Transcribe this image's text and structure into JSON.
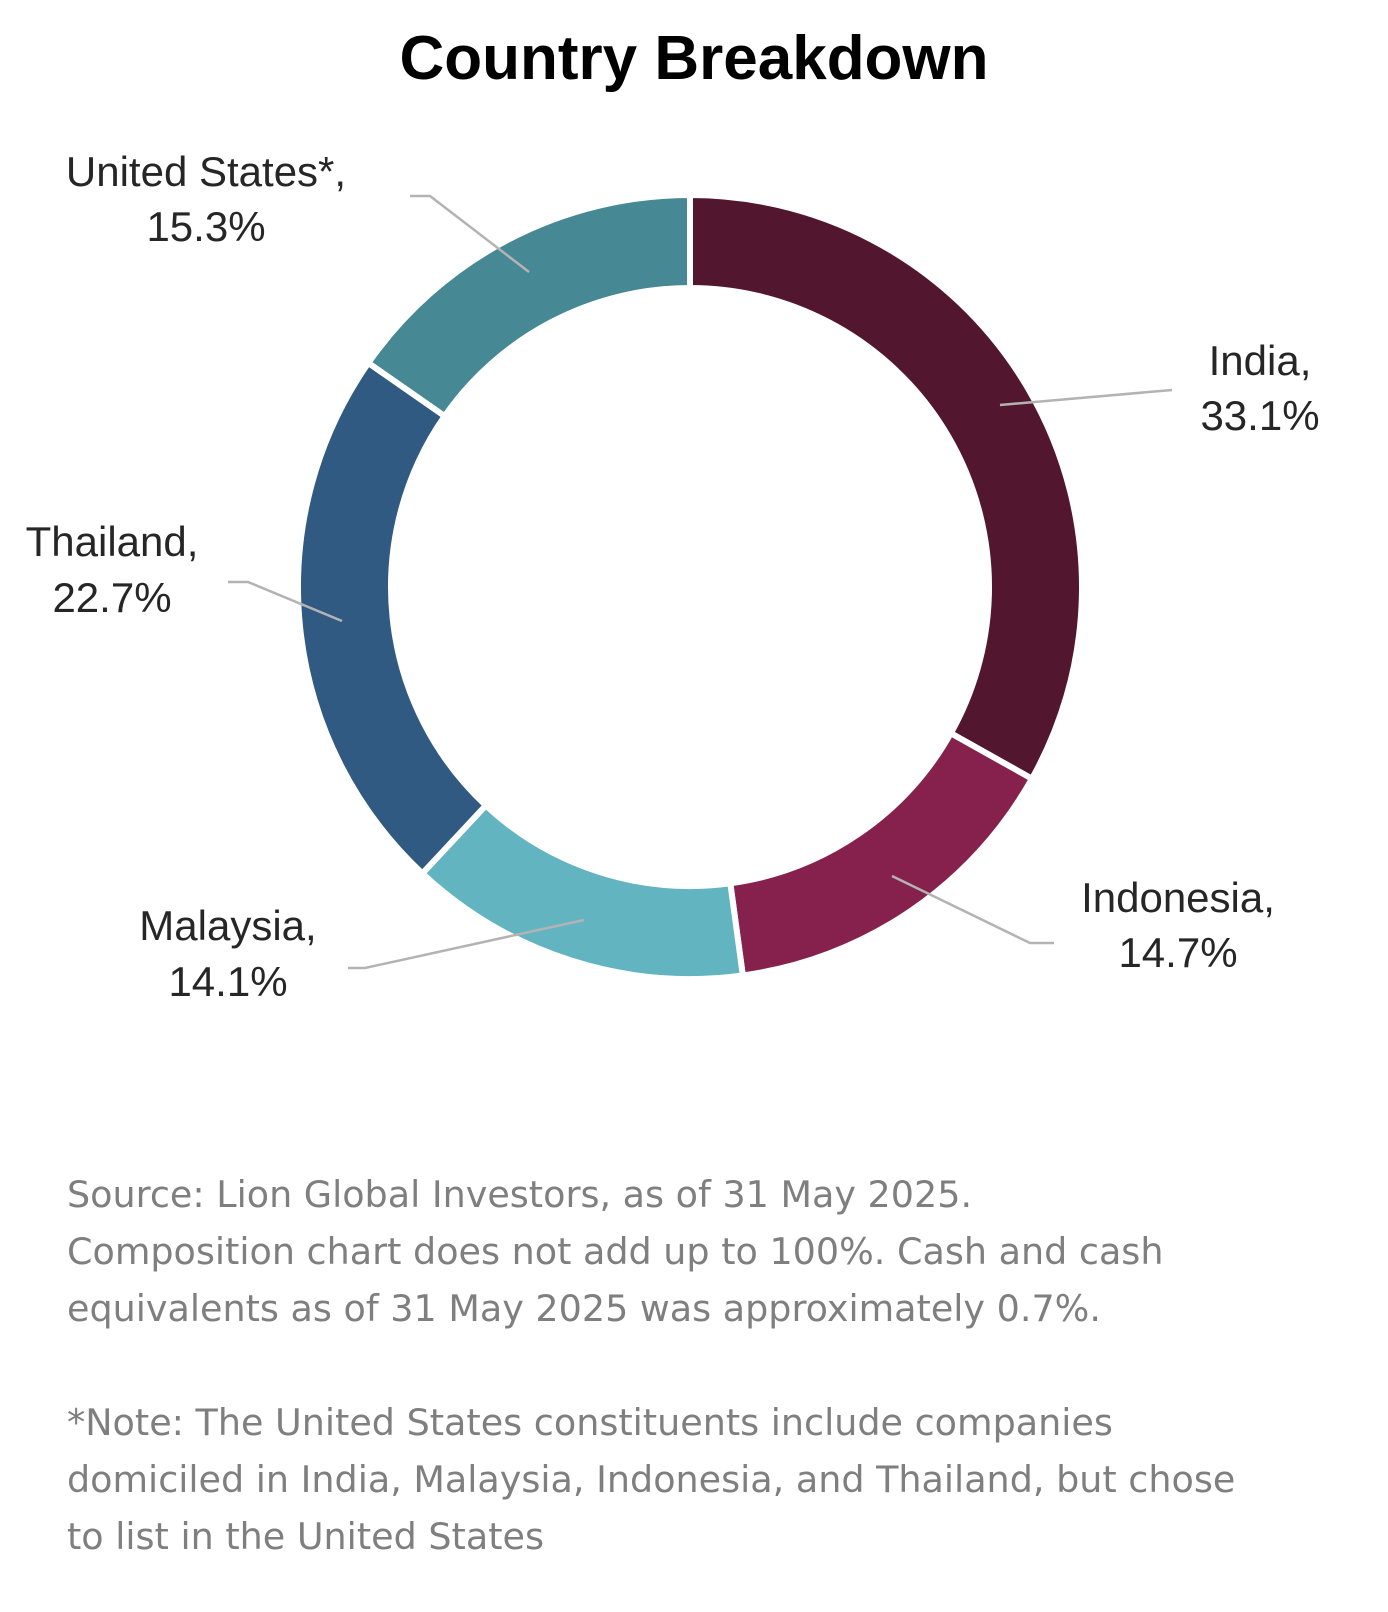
{
  "chart_data": {
    "type": "pie",
    "style": "donut",
    "title": "Country Breakdown",
    "slices": [
      {
        "label": "India,",
        "value_label": "33.1%",
        "value": 33.1,
        "color": "#52172E"
      },
      {
        "label": "Indonesia,",
        "value_label": "14.7%",
        "value": 14.7,
        "color": "#86214D"
      },
      {
        "label": "Malaysia,",
        "value_label": "14.1%",
        "value": 14.1,
        "color": "#63B4C1"
      },
      {
        "label": "Thailand,",
        "value_label": "22.7%",
        "value": 22.7,
        "color": "#305A81"
      },
      {
        "label": "United States*,",
        "value_label": "15.3%",
        "value": 15.3,
        "color": "#468893"
      }
    ],
    "legend": "none",
    "leader_line_color": "#B3B3B3"
  },
  "notes": {
    "source_lines": [
      "Source: Lion Global Investors, as of 31 May 2025.",
      "Composition chart does not add up to 100%. Cash and cash",
      "equivalents as of 31 May 2025 was approximately 0.7%."
    ],
    "footnote_lines": [
      "*Note: The United States constituents include companies",
      "domiciled in India, Malaysia, Indonesia, and Thailand, but chose",
      "to list in the United States"
    ]
  }
}
